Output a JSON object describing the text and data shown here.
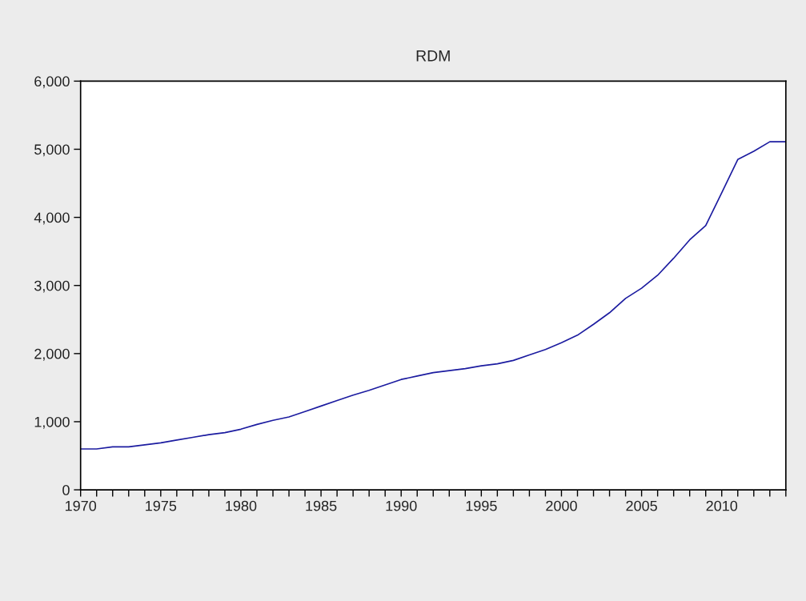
{
  "chart_data": {
    "type": "line",
    "title": "RDM",
    "x": [
      1970,
      1971,
      1972,
      1973,
      1974,
      1975,
      1976,
      1977,
      1978,
      1979,
      1980,
      1981,
      1982,
      1983,
      1984,
      1985,
      1986,
      1987,
      1988,
      1989,
      1990,
      1991,
      1992,
      1993,
      1994,
      1995,
      1996,
      1997,
      1998,
      1999,
      2000,
      2001,
      2002,
      2003,
      2004,
      2005,
      2006,
      2007,
      2008,
      2009,
      2010,
      2011,
      2012,
      2013,
      2014
    ],
    "series": [
      {
        "color": "#1c1ca0",
        "values": [
          600,
          600,
          630,
          630,
          660,
          690,
          730,
          770,
          810,
          840,
          890,
          960,
          1020,
          1070,
          1150,
          1230,
          1310,
          1390,
          1460,
          1540,
          1620,
          1670,
          1720,
          1750,
          1780,
          1820,
          1850,
          1900,
          1980,
          2060,
          2160,
          2270,
          2430,
          2600,
          2810,
          2960,
          3150,
          3400,
          3670,
          3880,
          4360,
          4850,
          4970,
          5110,
          5110
        ]
      }
    ],
    "xlim": [
      1970,
      2014
    ],
    "xticks": [
      1970,
      {
        "value": 1971,
        "label": null
      },
      {
        "value": 1972,
        "label": null
      },
      {
        "value": 1973,
        "label": null
      },
      {
        "value": 1974,
        "label": null
      },
      1975,
      {
        "value": 1976,
        "label": null
      },
      {
        "value": 1977,
        "label": null
      },
      {
        "value": 1978,
        "label": null
      },
      {
        "value": 1979,
        "label": null
      },
      1980,
      {
        "value": 1981,
        "label": null
      },
      {
        "value": 1982,
        "label": null
      },
      {
        "value": 1983,
        "label": null
      },
      {
        "value": 1984,
        "label": null
      },
      1985,
      {
        "value": 1986,
        "label": null
      },
      {
        "value": 1987,
        "label": null
      },
      {
        "value": 1988,
        "label": null
      },
      {
        "value": 1989,
        "label": null
      },
      1990,
      {
        "value": 1991,
        "label": null
      },
      {
        "value": 1992,
        "label": null
      },
      {
        "value": 1993,
        "label": null
      },
      {
        "value": 1994,
        "label": null
      },
      1995,
      {
        "value": 1996,
        "label": null
      },
      {
        "value": 1997,
        "label": null
      },
      {
        "value": 1998,
        "label": null
      },
      {
        "value": 1999,
        "label": null
      },
      2000,
      {
        "value": 2001,
        "label": null
      },
      {
        "value": 2002,
        "label": null
      },
      {
        "value": 2003,
        "label": null
      },
      {
        "value": 2004,
        "label": null
      },
      2005,
      {
        "value": 2006,
        "label": null
      },
      {
        "value": 2007,
        "label": null
      },
      {
        "value": 2008,
        "label": null
      },
      {
        "value": 2009,
        "label": null
      },
      2010,
      {
        "value": 2011,
        "label": null
      },
      {
        "value": 2012,
        "label": null
      },
      {
        "value": 2013,
        "label": null
      },
      {
        "value": 2014,
        "label": null
      }
    ],
    "ylim": [
      0,
      6000
    ],
    "yticks": [
      {
        "value": 0,
        "label": "0"
      },
      {
        "value": 1000,
        "label": "1,000"
      },
      {
        "value": 2000,
        "label": "2,000"
      },
      {
        "value": 3000,
        "label": "3,000"
      },
      {
        "value": 4000,
        "label": "4,000"
      },
      {
        "value": 5000,
        "label": "5,000"
      },
      {
        "value": 6000,
        "label": "6,000"
      }
    ],
    "grid": false
  }
}
